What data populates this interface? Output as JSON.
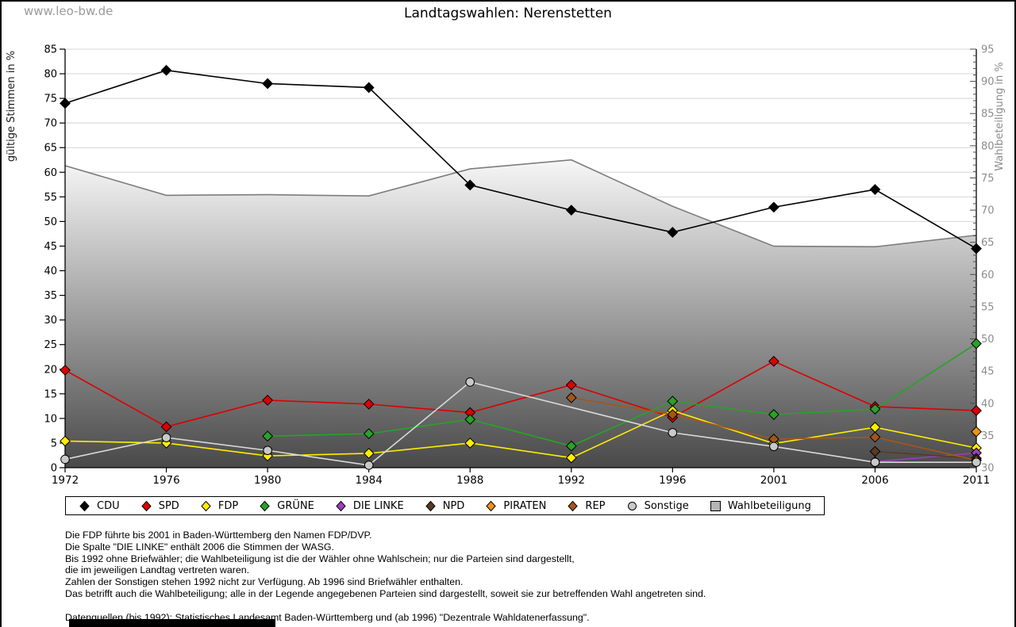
{
  "page": {
    "watermark": "www.leo-bw.de",
    "title": "Landtagswahlen: Nerenstetten"
  },
  "chart_data": {
    "type": "line",
    "title": "Landtagswahlen: Nerenstetten",
    "x_categories": [
      "1972",
      "1976",
      "1980",
      "1984",
      "1988",
      "1992",
      "1996",
      "2001",
      "2006",
      "2011"
    ],
    "left_axis": {
      "label": "gültige Stimmen in %",
      "min": 0,
      "max": 85,
      "tick_step": 5
    },
    "right_axis": {
      "label": "Wahlbeteiligung in %",
      "min": 30,
      "max": 95,
      "tick_step": 5,
      "minor_step": 1
    },
    "grid": true,
    "legend_position": "bottom",
    "colors": {
      "gridline": "#d4d4d4",
      "axis": "#000000",
      "right_axis_text": "#8c8c8c",
      "area_gradient_top": "#f7f7f7",
      "area_gradient_bottom": "#494949",
      "area_border": "#7d7d7d"
    },
    "series": [
      {
        "name": "CDU",
        "color": "#000000",
        "marker": "diamond",
        "axis": "left",
        "values": [
          74.0,
          80.7,
          78.0,
          77.2,
          57.4,
          52.3,
          47.8,
          52.9,
          56.5,
          44.5
        ]
      },
      {
        "name": "SPD",
        "color": "#dd0000",
        "marker": "diamond",
        "axis": "left",
        "values": [
          19.8,
          8.3,
          13.7,
          12.9,
          11.2,
          16.8,
          10.2,
          21.6,
          12.4,
          11.6
        ]
      },
      {
        "name": "FDP",
        "color": "#ffee00",
        "marker": "diamond",
        "axis": "left",
        "values": [
          5.4,
          5.0,
          2.4,
          2.9,
          5.0,
          2.0,
          11.6,
          4.9,
          8.2,
          4.0
        ]
      },
      {
        "name": "GRÜNE",
        "color": "#27a327",
        "marker": "diamond",
        "axis": "left",
        "values": [
          null,
          null,
          6.4,
          6.9,
          9.8,
          4.4,
          13.5,
          10.8,
          11.9,
          25.2
        ]
      },
      {
        "name": "DIE LINKE",
        "color": "#9b3fbf",
        "marker": "diamond",
        "axis": "left",
        "values": [
          null,
          null,
          null,
          null,
          null,
          null,
          null,
          null,
          1.2,
          3.0
        ]
      },
      {
        "name": "NPD",
        "color": "#5b3a21",
        "marker": "diamond",
        "axis": "left",
        "values": [
          null,
          null,
          null,
          null,
          null,
          null,
          null,
          null,
          3.3,
          1.9
        ]
      },
      {
        "name": "PIRATEN",
        "color": "#ef9214",
        "marker": "diamond",
        "axis": "left",
        "values": [
          null,
          null,
          null,
          null,
          null,
          null,
          null,
          null,
          null,
          7.3
        ]
      },
      {
        "name": "REP",
        "color": "#a4561a",
        "marker": "diamond",
        "axis": "left",
        "values": [
          null,
          null,
          null,
          null,
          null,
          14.2,
          10.8,
          5.8,
          6.2,
          1.5
        ]
      },
      {
        "name": "Sonstige",
        "color": "#c9c9c9",
        "line_color": "#d9d9d9",
        "marker": "circle",
        "axis": "left",
        "values": [
          1.7,
          6.1,
          3.5,
          0.5,
          17.4,
          null,
          7.1,
          4.3,
          1.1,
          1.1
        ]
      },
      {
        "name": "Wahlbeteiligung",
        "color": "#b5b5b5",
        "marker": "square",
        "axis": "right",
        "type": "area",
        "values": [
          76.9,
          72.3,
          72.4,
          72.2,
          76.4,
          77.8,
          70.6,
          64.4,
          64.3,
          66.1
        ]
      }
    ],
    "footnotes": [
      "Die FDP führte bis 2001 in Baden-Württemberg den Namen FDP/DVP.",
      "Die Spalte \"DIE LINKE\" enthält 2006 die Stimmen der WASG.",
      "Bis 1992 ohne Briefwähler; die Wahlbeteiligung ist die der Wähler ohne Wahlschein; nur die Parteien sind dargestellt,",
      "die im jeweiligen Landtag vertreten waren.",
      "Zahlen der Sonstigen stehen 1992 nicht zur Verfügung. Ab 1996 sind Briefwähler enthalten.",
      "Das betrifft auch die Wahlbeteiligung; alle in der Legende angegebenen Parteien sind dargestellt, soweit sie zur betreffenden Wahl angetreten sind.",
      "",
      "Datenquellen (bis 1992): Statistisches Landesamt Baden-Württemberg und (ab 1996) \"Dezentrale Wahldatenerfassung\"."
    ]
  }
}
